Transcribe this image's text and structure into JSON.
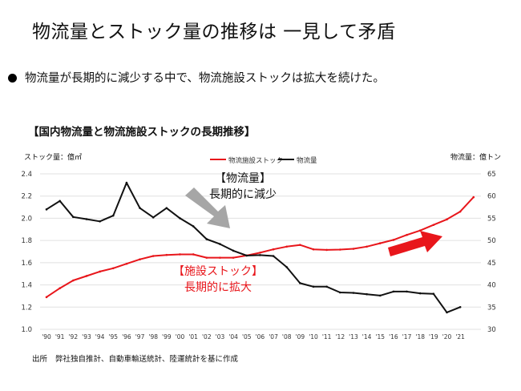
{
  "slide": {
    "title": "物流量とストック量の推移は 一見して矛盾",
    "bullet": "物流量が長期的に減少する中で、物流施設ストックは拡大を続けた。",
    "source_label": "出所",
    "source_text": "弊社独自推計、自動車輸送統計、陸運統計を基に作成"
  },
  "colors": {
    "stock": "#e8161b",
    "volume": "#111111",
    "arrow_gray": "#a6a6a6",
    "arrow_red": "#e8161b",
    "grid": "#e0e0e0"
  },
  "chart_data": {
    "type": "line",
    "title": "【国内物流量と物流施設ストックの長期推移】",
    "y_left_label": "ストック量：億㎡",
    "y_right_label": "物流量：億トン",
    "y_left_range": [
      1.0,
      2.4
    ],
    "y_left_ticks": [
      "2.4",
      "2.2",
      "2.0",
      "1.8",
      "1.6",
      "1.4",
      "1.2",
      "1.0"
    ],
    "y_right_range": [
      30,
      65
    ],
    "y_right_ticks": [
      "65",
      "60",
      "55",
      "50",
      "45",
      "40",
      "35",
      "30"
    ],
    "x_ticks": [
      "'90",
      "'91",
      "'92",
      "'93",
      "'94",
      "'95",
      "'96",
      "'97",
      "'98",
      "'99",
      "'00",
      "'01",
      "'02",
      "'03",
      "'04",
      "'05",
      "'06",
      "'07",
      "'08",
      "'09",
      "'10",
      "'11",
      "'12",
      "'13",
      "'14",
      "'15",
      "'16",
      "'17",
      "'18",
      "'19",
      "'20",
      "'21"
    ],
    "series": [
      {
        "name": "物流施設ストック",
        "axis": "left",
        "x": [
          1990,
          1991,
          1992,
          1993,
          1994,
          1995,
          1996,
          1997,
          1998,
          1999,
          2000,
          2001,
          2002,
          2003,
          2004,
          2005,
          2006,
          2007,
          2008,
          2009,
          2010,
          2011,
          2012,
          2013,
          2014,
          2015,
          2016,
          2017,
          2018,
          2019,
          2020,
          2021,
          2022
        ],
        "values": [
          1.29,
          1.37,
          1.44,
          1.48,
          1.52,
          1.55,
          1.59,
          1.63,
          1.66,
          1.67,
          1.675,
          1.675,
          1.645,
          1.645,
          1.645,
          1.665,
          1.69,
          1.72,
          1.745,
          1.76,
          1.72,
          1.715,
          1.718,
          1.725,
          1.745,
          1.775,
          1.805,
          1.85,
          1.89,
          1.94,
          1.99,
          2.06,
          2.19
        ]
      },
      {
        "name": "物流量",
        "axis": "right",
        "x": [
          1990,
          1991,
          1992,
          1993,
          1994,
          1995,
          1996,
          1997,
          1998,
          1999,
          2000,
          2001,
          2002,
          2003,
          2004,
          2005,
          2006,
          2007,
          2008,
          2009,
          2010,
          2011,
          2012,
          2013,
          2014,
          2015,
          2016,
          2017,
          2018,
          2019,
          2020,
          2021
        ],
        "values": [
          57.0,
          58.9,
          55.3,
          54.8,
          54.3,
          55.6,
          63.0,
          57.3,
          55.2,
          57.3,
          55.0,
          53.2,
          50.3,
          49.2,
          47.7,
          46.6,
          46.7,
          46.5,
          44.0,
          40.4,
          39.6,
          39.6,
          38.3,
          38.2,
          37.9,
          37.6,
          38.5,
          38.5,
          38.1,
          38.0,
          33.8,
          35.0
        ]
      }
    ],
    "annotations": [
      {
        "text_line1": "【物流量】",
        "text_line2": "長期的に減少"
      },
      {
        "text_line1": "【施設ストック】",
        "text_line2": "長期的に拡大"
      }
    ],
    "grid": "horizontal",
    "legend": "top"
  }
}
